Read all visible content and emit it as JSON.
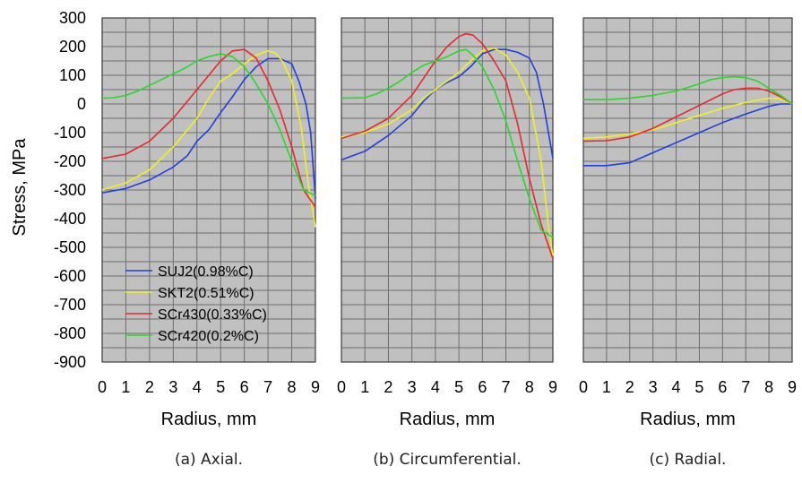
{
  "figure": {
    "ylabel": "Stress, MPa",
    "y_ticks": [
      300,
      200,
      100,
      0,
      -100,
      -200,
      -300,
      -400,
      -500,
      -600,
      -700,
      -800,
      -900
    ]
  },
  "chart_data": [
    {
      "type": "line",
      "caption": "(a) Axial.",
      "xlabel": "Radius, mm",
      "ylabel": "Stress, MPa",
      "xlim": [
        0,
        9
      ],
      "ylim": [
        -900,
        300
      ],
      "x_ticks": [
        0,
        1,
        2,
        3,
        4,
        5,
        6,
        7,
        8,
        9
      ],
      "grid": true,
      "legend_position": "bottom-left",
      "series": [
        {
          "name": "SUJ2(0.98%C)",
          "color": "#1f3fe0",
          "x": [
            0,
            1,
            2,
            3,
            3.6,
            4,
            4.5,
            5,
            5.5,
            6,
            6.5,
            7,
            7.5,
            8,
            8.3,
            8.6,
            8.8,
            9
          ],
          "y": [
            -310,
            -295,
            -265,
            -220,
            -180,
            -130,
            -90,
            -30,
            25,
            85,
            130,
            158,
            158,
            140,
            80,
            0,
            -100,
            -330
          ]
        },
        {
          "name": "SKT2(0.51%C)",
          "color": "#f0f020",
          "x": [
            0,
            1,
            2,
            3,
            4,
            4.5,
            5,
            5.5,
            6,
            6.5,
            7,
            7.3,
            7.6,
            8,
            8.4,
            8.7,
            9
          ],
          "y": [
            -300,
            -275,
            -230,
            -150,
            -50,
            20,
            80,
            105,
            140,
            170,
            185,
            178,
            150,
            80,
            -80,
            -280,
            -430
          ]
        },
        {
          "name": "SCr430(0.33%C)",
          "color": "#e8282a",
          "x": [
            0,
            1,
            2,
            3,
            3.5,
            4,
            4.5,
            5,
            5.5,
            6,
            6.5,
            7,
            7.5,
            8,
            8.5,
            9
          ],
          "y": [
            -190,
            -175,
            -130,
            -50,
            0,
            50,
            100,
            150,
            185,
            190,
            160,
            80,
            -20,
            -150,
            -300,
            -360
          ]
        },
        {
          "name": "SCr420(0.2%C)",
          "color": "#28d828",
          "x": [
            0,
            0.5,
            1,
            1.5,
            2,
            2.5,
            3,
            3.5,
            4,
            4.5,
            5,
            5.5,
            6,
            6.5,
            7,
            7.5,
            8,
            8.5,
            9
          ],
          "y": [
            20,
            22,
            30,
            45,
            65,
            85,
            105,
            125,
            150,
            165,
            175,
            165,
            130,
            70,
            0,
            -90,
            -200,
            -300,
            -320
          ]
        }
      ]
    },
    {
      "type": "line",
      "caption": "(b) Circumferential.",
      "xlabel": "Radius, mm",
      "ylabel": "Stress, MPa",
      "xlim": [
        0,
        9
      ],
      "ylim": [
        -900,
        300
      ],
      "x_ticks": [
        0,
        1,
        2,
        3,
        4,
        5,
        6,
        7,
        8,
        9
      ],
      "grid": true,
      "series": [
        {
          "name": "SUJ2(0.98%C)",
          "color": "#1f3fe0",
          "x": [
            0,
            1,
            2,
            3,
            3.5,
            4,
            4.5,
            5,
            5.5,
            6,
            6.5,
            7,
            7.5,
            8,
            8.3,
            8.6,
            9
          ],
          "y": [
            -195,
            -165,
            -110,
            -40,
            10,
            50,
            75,
            95,
            130,
            175,
            190,
            190,
            180,
            160,
            110,
            0,
            -190
          ]
        },
        {
          "name": "SKT2(0.51%C)",
          "color": "#f0f020",
          "x": [
            0,
            1,
            2,
            3,
            3.5,
            4,
            4.5,
            5,
            5.5,
            6,
            6.5,
            7,
            7.5,
            8,
            8.5,
            8.8,
            9
          ],
          "y": [
            -115,
            -100,
            -70,
            -20,
            20,
            50,
            80,
            110,
            150,
            185,
            195,
            170,
            110,
            20,
            -200,
            -420,
            -530
          ]
        },
        {
          "name": "SCr430(0.33%C)",
          "color": "#e8282a",
          "x": [
            0,
            1,
            2,
            3,
            3.5,
            4,
            4.5,
            5,
            5.3,
            5.6,
            6,
            6.5,
            7,
            7.5,
            8,
            8.5,
            9
          ],
          "y": [
            -120,
            -95,
            -50,
            30,
            90,
            150,
            200,
            235,
            245,
            240,
            210,
            150,
            80,
            -70,
            -260,
            -420,
            -540
          ]
        },
        {
          "name": "SCr420(0.2%C)",
          "color": "#28d828",
          "x": [
            0,
            1,
            1.5,
            2,
            2.5,
            3,
            3.5,
            4,
            4.5,
            5,
            5.3,
            5.6,
            6,
            6.5,
            7,
            7.5,
            8,
            8.5,
            9
          ],
          "y": [
            20,
            22,
            35,
            55,
            80,
            110,
            135,
            150,
            165,
            185,
            190,
            170,
            130,
            50,
            -60,
            -200,
            -330,
            -440,
            -465
          ]
        }
      ]
    },
    {
      "type": "line",
      "caption": "(c) Radial.",
      "xlabel": "Radius, mm",
      "ylabel": "Stress, MPa",
      "xlim": [
        0,
        9
      ],
      "ylim": [
        -900,
        300
      ],
      "x_ticks": [
        0,
        1,
        2,
        3,
        4,
        5,
        6,
        7,
        8,
        9
      ],
      "grid": true,
      "series": [
        {
          "name": "SUJ2(0.98%C)",
          "color": "#1f3fe0",
          "x": [
            0,
            1,
            2,
            3,
            4,
            5,
            6,
            7,
            8,
            8.5,
            9
          ],
          "y": [
            -215,
            -215,
            -205,
            -170,
            -135,
            -100,
            -65,
            -35,
            -8,
            0,
            0
          ]
        },
        {
          "name": "SKT2(0.51%C)",
          "color": "#f0f020",
          "x": [
            0,
            1,
            2,
            3,
            4,
            5,
            6,
            7,
            8,
            8.5,
            9
          ],
          "y": [
            -120,
            -115,
            -105,
            -90,
            -65,
            -40,
            -15,
            5,
            20,
            18,
            0
          ]
        },
        {
          "name": "SCr430(0.33%C)",
          "color": "#e8282a",
          "x": [
            0,
            1,
            2,
            3,
            4,
            5,
            6,
            6.5,
            7,
            7.5,
            8,
            8.5,
            9
          ],
          "y": [
            -130,
            -128,
            -115,
            -85,
            -45,
            -5,
            35,
            50,
            55,
            55,
            45,
            25,
            0
          ]
        },
        {
          "name": "SCr420(0.2%C)",
          "color": "#28d828",
          "x": [
            0,
            1,
            2,
            3,
            4,
            5,
            5.5,
            6,
            6.5,
            7,
            7.5,
            8,
            8.5,
            9
          ],
          "y": [
            15,
            15,
            20,
            30,
            45,
            70,
            85,
            92,
            95,
            92,
            80,
            55,
            30,
            0
          ]
        }
      ]
    }
  ]
}
